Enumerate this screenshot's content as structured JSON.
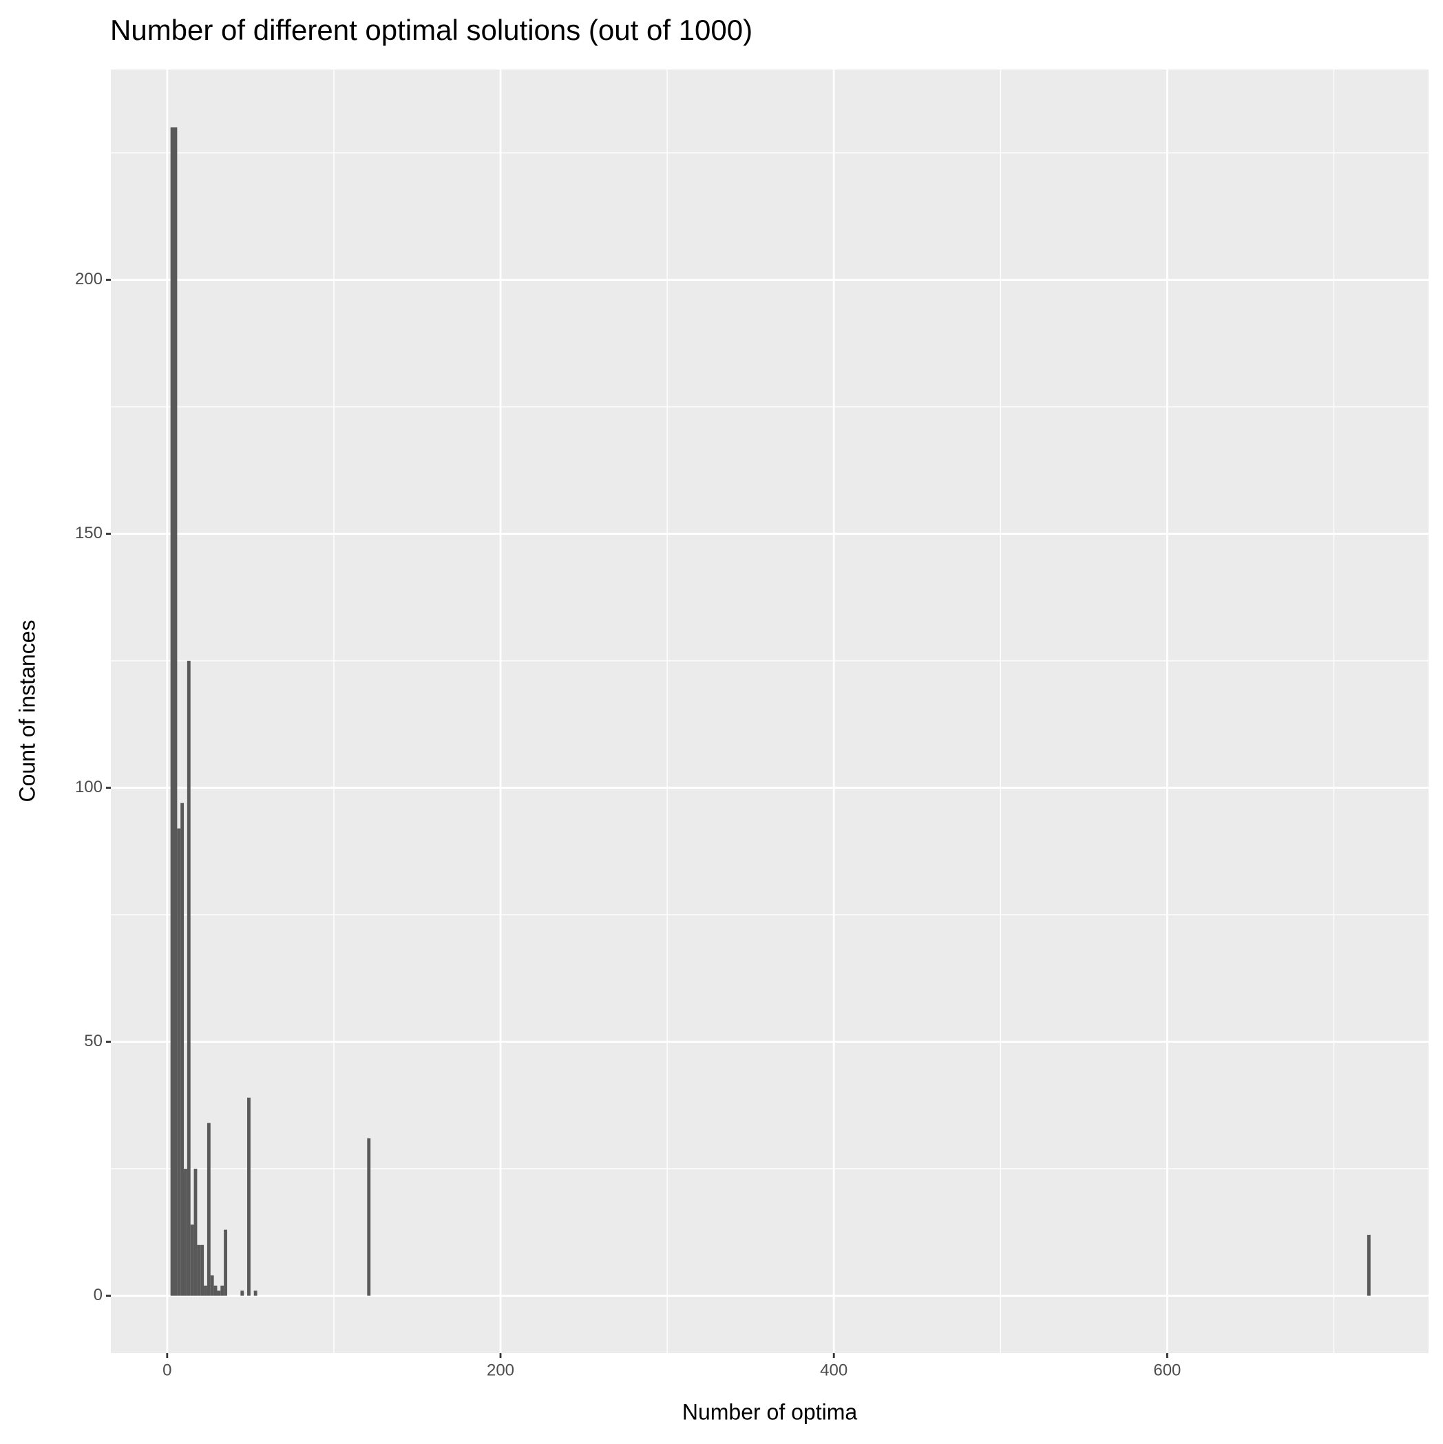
{
  "chart_data": {
    "type": "histogram",
    "title": "Number of different optimal solutions (out of 1000)",
    "x_label": "Number of optima",
    "y_label": "Count of instances",
    "bins": [
      0,
      2,
      4,
      6,
      8,
      10,
      12,
      14,
      16,
      18,
      20,
      22,
      24,
      26,
      28,
      30,
      32,
      34,
      36,
      44,
      46,
      48,
      50,
      52,
      54,
      120,
      122,
      720,
      722
    ],
    "counts": [
      0,
      230,
      230,
      92,
      97,
      25,
      125,
      14,
      25,
      10,
      10,
      2,
      34,
      4,
      2,
      1,
      2,
      13,
      0,
      1,
      0,
      39,
      0,
      1,
      0,
      31,
      0,
      12
    ],
    "color": "#595959",
    "xlim": [
      -33.8,
      756.8
    ],
    "ylim": [
      -11.3,
      241.4
    ],
    "xticks": [
      0,
      200,
      400,
      600
    ],
    "yticks": [
      0,
      50,
      100,
      150,
      200
    ],
    "x_minor_grid": [
      100,
      300,
      500,
      700
    ],
    "y_minor_grid": [
      25,
      75,
      125,
      175,
      225
    ],
    "grid": true
  }
}
